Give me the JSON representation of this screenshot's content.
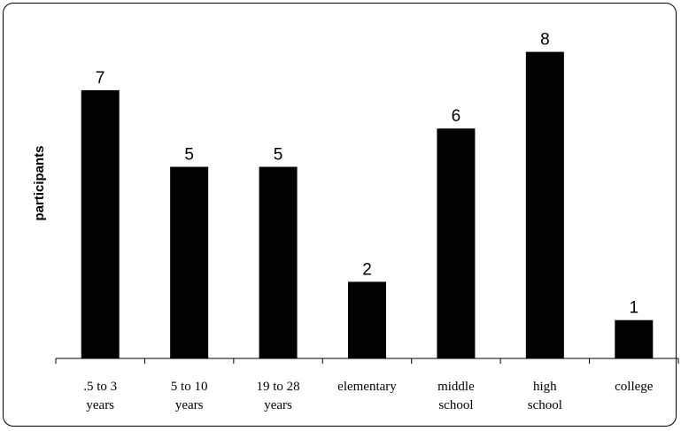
{
  "chart_data": {
    "type": "bar",
    "title": "",
    "xlabel": "",
    "ylabel": "participants",
    "ylim": [
      0,
      8
    ],
    "grid": false,
    "legend": "none",
    "categories": [
      [
        ".5 to 3",
        "years"
      ],
      [
        "5 to 10",
        "years"
      ],
      [
        "19 to 28",
        "years"
      ],
      [
        "elementary"
      ],
      [
        "middle",
        "school"
      ],
      [
        "high",
        "school"
      ],
      [
        "college"
      ]
    ],
    "values": [
      7,
      5,
      5,
      2,
      6,
      8,
      1
    ],
    "colors": {
      "bar": "#000000",
      "axis": "#000000",
      "text": "#000000"
    }
  }
}
